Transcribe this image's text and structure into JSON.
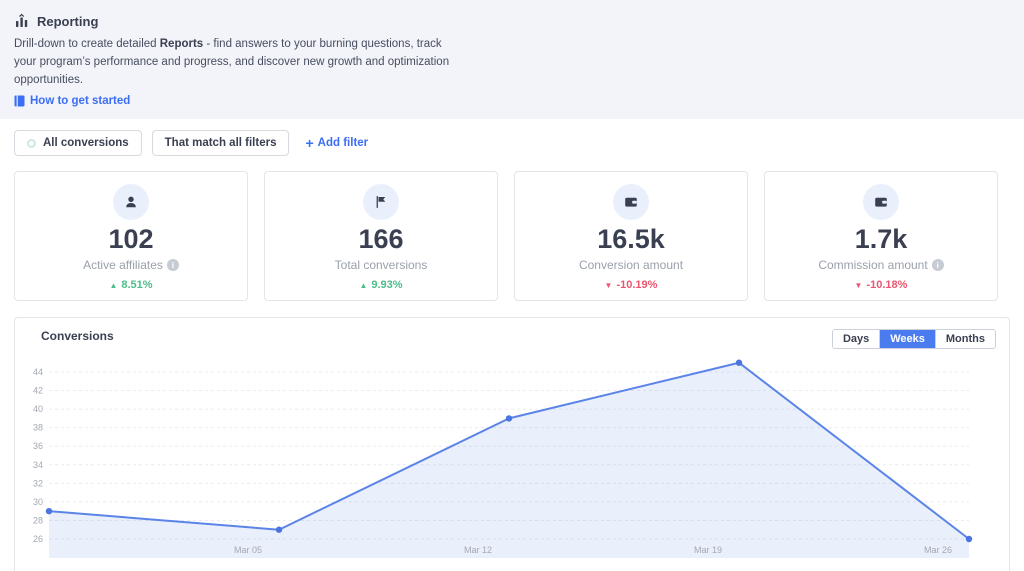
{
  "colors": {
    "accent": "#4a7cf0",
    "link_blue": "#3b6ef5",
    "line": "#5b84e8",
    "point": "#4a74df",
    "area": "rgba(91,132,232,0.13)",
    "grid": "#e9ebef",
    "axis_text": "#a3a8b3",
    "green_up": "#4cbd88",
    "red_down": "#e85670",
    "navy_text": "#3a4051"
  },
  "header": {
    "title": "Reporting",
    "desc_pre": "Drill-down to create detailed ",
    "desc_bold": "Reports",
    "desc_post": " - find answers to your burning questions, track your program’s performance and progress, and discover new growth and optimization opportunities.",
    "link_label": "How to get started"
  },
  "filter_bar": {
    "all_conversions_label": "All conversions",
    "match_filters_label": "That match all filters",
    "add_filter_plus": "+",
    "add_filter_label": "Add filter"
  },
  "stats": [
    {
      "icon": "user-icon",
      "value": "102",
      "label": "Active affiliates",
      "has_info": true,
      "trend_direction": "up",
      "trend_value": "8.51%",
      "trend_arrow": "▲"
    },
    {
      "icon": "flag-icon",
      "value": "166",
      "label": "Total conversions",
      "has_info": false,
      "trend_direction": "up",
      "trend_value": "9.93%",
      "trend_arrow": "▲"
    },
    {
      "icon": "wallet-icon",
      "value": "16.5k",
      "label": "Conversion amount",
      "has_info": false,
      "trend_direction": "down",
      "trend_value": "-10.19%",
      "trend_arrow": "▼"
    },
    {
      "icon": "wallet-icon",
      "value": "1.7k",
      "label": "Commission amount",
      "has_info": true,
      "trend_direction": "down",
      "trend_value": "-10.18%",
      "trend_arrow": "▼"
    }
  ],
  "chart": {
    "title": "Conversions",
    "range_options": [
      "Days",
      "Weeks",
      "Months"
    ],
    "selected_range": "Weeks"
  },
  "chart_data": {
    "type": "area",
    "title": "Conversions",
    "values": [
      29,
      27,
      39,
      45,
      26
    ],
    "x_tick_labels": [
      "Mar 05",
      "Mar 12",
      "Mar 19",
      "Mar 26"
    ],
    "x_label_point_indices": [
      1,
      2,
      3,
      4
    ],
    "yticks": [
      26,
      28,
      30,
      32,
      34,
      36,
      38,
      40,
      42,
      44
    ],
    "ylim": [
      25,
      45.5
    ],
    "grid": true,
    "legend": false,
    "xlabel": "",
    "ylabel": ""
  }
}
